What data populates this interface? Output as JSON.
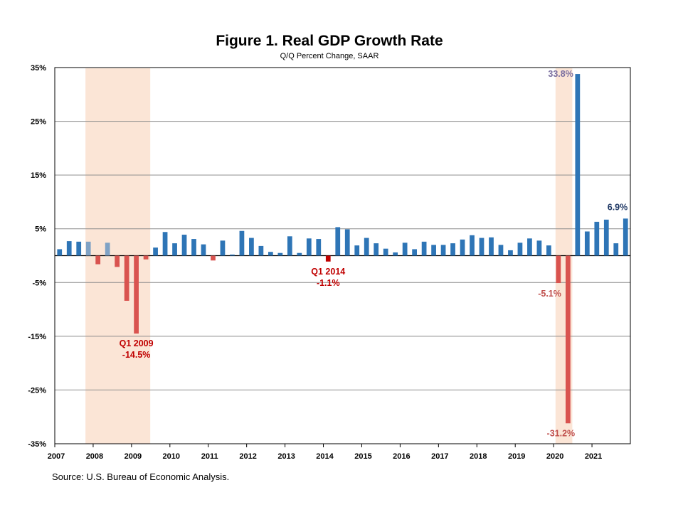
{
  "chart_data": {
    "type": "bar",
    "title": "Figure 1. Real GDP Growth Rate",
    "subtitle": "Q/Q Percent Change, SAAR",
    "source": "Source: U.S. Bureau of Economic Analysis.",
    "ylim": [
      -35,
      35
    ],
    "yticks": [
      "35%",
      "25%",
      "15%",
      "5%",
      "-5%",
      "-15%",
      "-25%",
      "-35%"
    ],
    "ytick_values": [
      35,
      25,
      15,
      5,
      -5,
      -15,
      -25,
      -35
    ],
    "year_labels": [
      "2007",
      "2008",
      "2009",
      "2010",
      "2011",
      "2012",
      "2013",
      "2014",
      "2015",
      "2016",
      "2017",
      "2018",
      "2019",
      "2020",
      "2021"
    ],
    "grid": true,
    "quarters_per_year": 4,
    "values": [
      1.2,
      2.7,
      2.6,
      2.6,
      -1.6,
      2.4,
      -2.1,
      -8.4,
      -14.5,
      -0.7,
      1.5,
      4.4,
      2.3,
      3.9,
      3.1,
      2.1,
      -0.9,
      2.8,
      0.2,
      4.6,
      3.3,
      1.8,
      0.7,
      0.5,
      3.6,
      0.5,
      3.2,
      3.1,
      -1.1,
      5.3,
      4.9,
      1.9,
      3.3,
      2.3,
      1.3,
      0.6,
      2.4,
      1.2,
      2.6,
      2.0,
      2.0,
      2.3,
      3.0,
      3.8,
      3.3,
      3.4,
      2.0,
      1.0,
      2.4,
      3.2,
      2.8,
      1.9,
      -5.1,
      -31.2,
      33.8,
      4.5,
      6.3,
      6.7,
      2.3,
      6.9
    ],
    "colors": {
      "positive": "#2E75B6",
      "negative": "#D9534F",
      "recession_positive": "#7FA2C5",
      "recession_negative": "#D9534F",
      "highlight_negative": "#C00000",
      "recession_shade": "#FBE5D6",
      "label_red": "#C00000",
      "label_navy": "#1F3864",
      "label_purple": "#7B6FA0"
    },
    "recessions": [
      {
        "start_index": 3,
        "end_index": 9
      },
      {
        "start_index": 52,
        "end_index": 53
      }
    ],
    "highlight_index": 28,
    "annotations": [
      {
        "index": 8,
        "lines": [
          "Q1 2009",
          "-14.5%"
        ],
        "color": "#C00000"
      },
      {
        "index": 28,
        "lines": [
          "Q1 2014",
          "-1.1%"
        ],
        "color": "#C00000"
      },
      {
        "index": 52,
        "lines": [
          "-5.1%"
        ],
        "color": "#C0504D"
      },
      {
        "index": 53,
        "lines": [
          "-31.2%"
        ],
        "color": "#C0504D"
      },
      {
        "index": 54,
        "lines": [
          "33.8%"
        ],
        "color": "#7B6FA0"
      },
      {
        "index": 59,
        "lines": [
          "6.9%"
        ],
        "color": "#1F3864"
      }
    ]
  }
}
